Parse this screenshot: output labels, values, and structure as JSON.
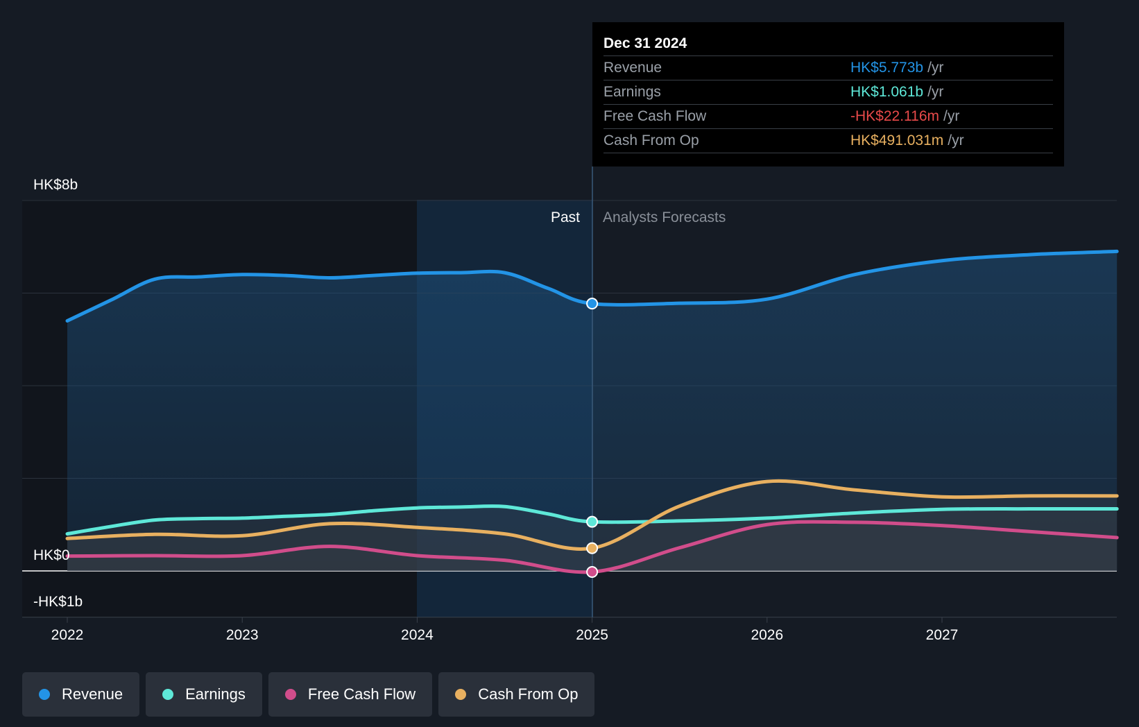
{
  "chart_data": {
    "type": "area",
    "x_ticks": [
      "2022",
      "2023",
      "2024",
      "2025",
      "2026",
      "2027"
    ],
    "y_ticks": [
      "HK$8b",
      "HK$0",
      "-HK$1b"
    ],
    "ylim": [
      -1,
      8
    ],
    "period_labels": {
      "past": "Past",
      "forecast": "Analysts Forecasts"
    },
    "series": [
      {
        "name": "Revenue",
        "color": "#2394e6",
        "past": [
          [
            2022.0,
            5.4
          ],
          [
            2022.25,
            5.85
          ],
          [
            2022.5,
            6.3
          ],
          [
            2022.75,
            6.35
          ],
          [
            2023.0,
            6.4
          ],
          [
            2023.25,
            6.38
          ],
          [
            2023.5,
            6.33
          ],
          [
            2023.75,
            6.38
          ],
          [
            2024.0,
            6.43
          ],
          [
            2024.25,
            6.44
          ],
          [
            2024.5,
            6.44
          ],
          [
            2024.75,
            6.1
          ],
          [
            2025.0,
            5.773
          ]
        ],
        "forecast": [
          [
            2025.0,
            5.773
          ],
          [
            2025.5,
            5.78
          ],
          [
            2026.0,
            5.87
          ],
          [
            2026.5,
            6.4
          ],
          [
            2027.0,
            6.7
          ],
          [
            2027.5,
            6.83
          ],
          [
            2028.0,
            6.9
          ]
        ]
      },
      {
        "name": "Earnings",
        "color": "#5ee8d8",
        "past": [
          [
            2022.0,
            0.8
          ],
          [
            2022.25,
            0.96
          ],
          [
            2022.5,
            1.1
          ],
          [
            2022.75,
            1.13
          ],
          [
            2023.0,
            1.14
          ],
          [
            2023.25,
            1.18
          ],
          [
            2023.5,
            1.22
          ],
          [
            2023.75,
            1.3
          ],
          [
            2024.0,
            1.36
          ],
          [
            2024.25,
            1.38
          ],
          [
            2024.5,
            1.39
          ],
          [
            2024.75,
            1.23
          ],
          [
            2025.0,
            1.061
          ]
        ],
        "forecast": [
          [
            2025.0,
            1.061
          ],
          [
            2025.5,
            1.08
          ],
          [
            2026.0,
            1.14
          ],
          [
            2026.5,
            1.25
          ],
          [
            2027.0,
            1.33
          ],
          [
            2027.5,
            1.34
          ],
          [
            2028.0,
            1.34
          ]
        ]
      },
      {
        "name": "Free Cash Flow",
        "color": "#d14d8b",
        "past": [
          [
            2022.0,
            0.32
          ],
          [
            2022.5,
            0.33
          ],
          [
            2023.0,
            0.33
          ],
          [
            2023.5,
            0.53
          ],
          [
            2024.0,
            0.33
          ],
          [
            2024.5,
            0.23
          ],
          [
            2025.0,
            -0.022
          ]
        ],
        "forecast": [
          [
            2025.0,
            -0.022
          ],
          [
            2025.5,
            0.5
          ],
          [
            2026.0,
            1.0
          ],
          [
            2026.5,
            1.05
          ],
          [
            2027.0,
            0.98
          ],
          [
            2027.5,
            0.85
          ],
          [
            2028.0,
            0.72
          ]
        ]
      },
      {
        "name": "Cash From Op",
        "color": "#e8b060",
        "past": [
          [
            2022.0,
            0.7
          ],
          [
            2022.5,
            0.79
          ],
          [
            2023.0,
            0.76
          ],
          [
            2023.5,
            1.02
          ],
          [
            2024.0,
            0.94
          ],
          [
            2024.5,
            0.8
          ],
          [
            2025.0,
            0.491
          ]
        ],
        "forecast": [
          [
            2025.0,
            0.491
          ],
          [
            2025.5,
            1.4
          ],
          [
            2026.0,
            1.93
          ],
          [
            2026.5,
            1.75
          ],
          [
            2027.0,
            1.6
          ],
          [
            2027.5,
            1.62
          ],
          [
            2028.0,
            1.62
          ]
        ]
      }
    ]
  },
  "tooltip": {
    "date": "Dec 31 2024",
    "unit": "/yr",
    "rows": [
      {
        "label": "Revenue",
        "value": "HK$5.773b",
        "color": "#2394e6"
      },
      {
        "label": "Earnings",
        "value": "HK$1.061b",
        "color": "#5ee8d8"
      },
      {
        "label": "Free Cash Flow",
        "value": "-HK$22.116m",
        "color": "#e84a4a"
      },
      {
        "label": "Cash From Op",
        "value": "HK$491.031m",
        "color": "#e8b060"
      }
    ]
  },
  "legend": [
    {
      "label": "Revenue",
      "color": "#2394e6"
    },
    {
      "label": "Earnings",
      "color": "#5ee8d8"
    },
    {
      "label": "Free Cash Flow",
      "color": "#d14d8b"
    },
    {
      "label": "Cash From Op",
      "color": "#e8b060"
    }
  ]
}
